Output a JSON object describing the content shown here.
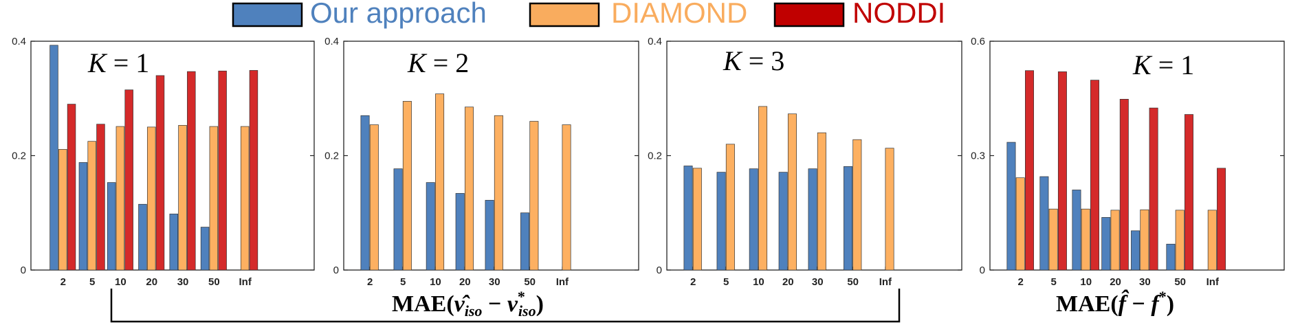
{
  "legend": [
    {
      "label": "Our approach",
      "color": "#4f81bd",
      "text_color": "#4f81bd"
    },
    {
      "label": "DIAMOND",
      "color": "#f9ac5e",
      "text_color": "#f9ac5e"
    },
    {
      "label": "NODDI",
      "color": "#c00000",
      "text_color": "#c00000"
    }
  ],
  "bar_fill_colors": {
    "ours": "#4f81bd",
    "diamond": "#fdb061",
    "noddi": "#d42a2a"
  },
  "bottom_labels": {
    "left": "MAE(ν̂_iso − ν*_iso)",
    "left_parts": {
      "pre": "MAE(",
      "sym": "ν̂",
      "sub1": "iso",
      "minus": " − ",
      "sym2": "ν",
      "sup2": "*",
      "sub2": "iso",
      "post": ")"
    },
    "right_parts": {
      "pre": "MAE(",
      "sym": "f̂",
      "minus": " − ",
      "sym2": "f",
      "sup2": "*",
      "post": ")"
    }
  },
  "chart_data": [
    {
      "type": "bar",
      "title": "K = 1",
      "title_parts": {
        "var": "K",
        "rest": " = 1"
      },
      "categories": [
        "2",
        "5",
        "10",
        "20",
        "30",
        "50",
        "Inf"
      ],
      "ylim": [
        0,
        0.4
      ],
      "yticks": [
        {
          "v": 0,
          "label": "0"
        },
        {
          "v": 0.2,
          "label": "0.2"
        },
        {
          "v": 0.4,
          "label": "0.4"
        }
      ],
      "series": [
        {
          "name": "Our approach",
          "key": "ours",
          "values": [
            0.393,
            0.188,
            0.153,
            0.115,
            0.098,
            0.075,
            null
          ]
        },
        {
          "name": "DIAMOND",
          "key": "diamond",
          "values": [
            0.211,
            0.225,
            0.251,
            0.25,
            0.253,
            0.251,
            0.251
          ]
        },
        {
          "name": "NODDI",
          "key": "noddi",
          "values": [
            0.29,
            0.255,
            0.315,
            0.34,
            0.347,
            0.348,
            0.349
          ]
        }
      ]
    },
    {
      "type": "bar",
      "title": "K = 2",
      "title_parts": {
        "var": "K",
        "rest": " = 2"
      },
      "categories": [
        "2",
        "5",
        "10",
        "20",
        "30",
        "50",
        "Inf"
      ],
      "ylim": [
        0,
        0.4
      ],
      "yticks": [
        {
          "v": 0,
          "label": "0"
        },
        {
          "v": 0.2,
          "label": "0.2"
        },
        {
          "v": 0.4,
          "label": "0.4"
        }
      ],
      "series": [
        {
          "name": "Our approach",
          "key": "ours",
          "values": [
            0.27,
            0.177,
            0.153,
            0.134,
            0.122,
            0.1,
            null
          ]
        },
        {
          "name": "DIAMOND",
          "key": "diamond",
          "values": [
            0.254,
            0.295,
            0.308,
            0.285,
            0.27,
            0.26,
            0.254
          ]
        }
      ]
    },
    {
      "type": "bar",
      "title": "K = 3",
      "title_parts": {
        "var": "K",
        "rest": " = 3"
      },
      "categories": [
        "2",
        "5",
        "10",
        "20",
        "30",
        "50",
        "Inf"
      ],
      "ylim": [
        0,
        0.4
      ],
      "yticks": [
        {
          "v": 0,
          "label": "0"
        },
        {
          "v": 0.2,
          "label": "0.2"
        },
        {
          "v": 0.4,
          "label": "0.4"
        }
      ],
      "series": [
        {
          "name": "Our approach",
          "key": "ours",
          "values": [
            0.182,
            0.171,
            0.177,
            0.171,
            0.177,
            0.181,
            null
          ]
        },
        {
          "name": "DIAMOND",
          "key": "diamond",
          "values": [
            0.178,
            0.22,
            0.286,
            0.273,
            0.24,
            0.228,
            0.213
          ]
        }
      ]
    },
    {
      "type": "bar",
      "title": "K = 1",
      "title_parts": {
        "var": "K",
        "rest": " = 1"
      },
      "categories": [
        "2",
        "5",
        "10",
        "20",
        "30",
        "50",
        "Inf"
      ],
      "ylim": [
        0,
        0.6
      ],
      "yticks": [
        {
          "v": 0,
          "label": "0"
        },
        {
          "v": 0.3,
          "label": "0.3"
        },
        {
          "v": 0.6,
          "label": "0.6"
        }
      ],
      "series": [
        {
          "name": "Our approach",
          "key": "ours",
          "values": [
            0.335,
            0.245,
            0.21,
            0.138,
            0.103,
            0.068,
            null
          ]
        },
        {
          "name": "DIAMOND",
          "key": "diamond",
          "values": [
            0.242,
            0.16,
            0.16,
            0.157,
            0.158,
            0.157,
            0.157
          ]
        },
        {
          "name": "NODDI",
          "key": "noddi",
          "values": [
            0.523,
            0.52,
            0.498,
            0.448,
            0.425,
            0.408,
            0.267
          ]
        }
      ]
    }
  ]
}
